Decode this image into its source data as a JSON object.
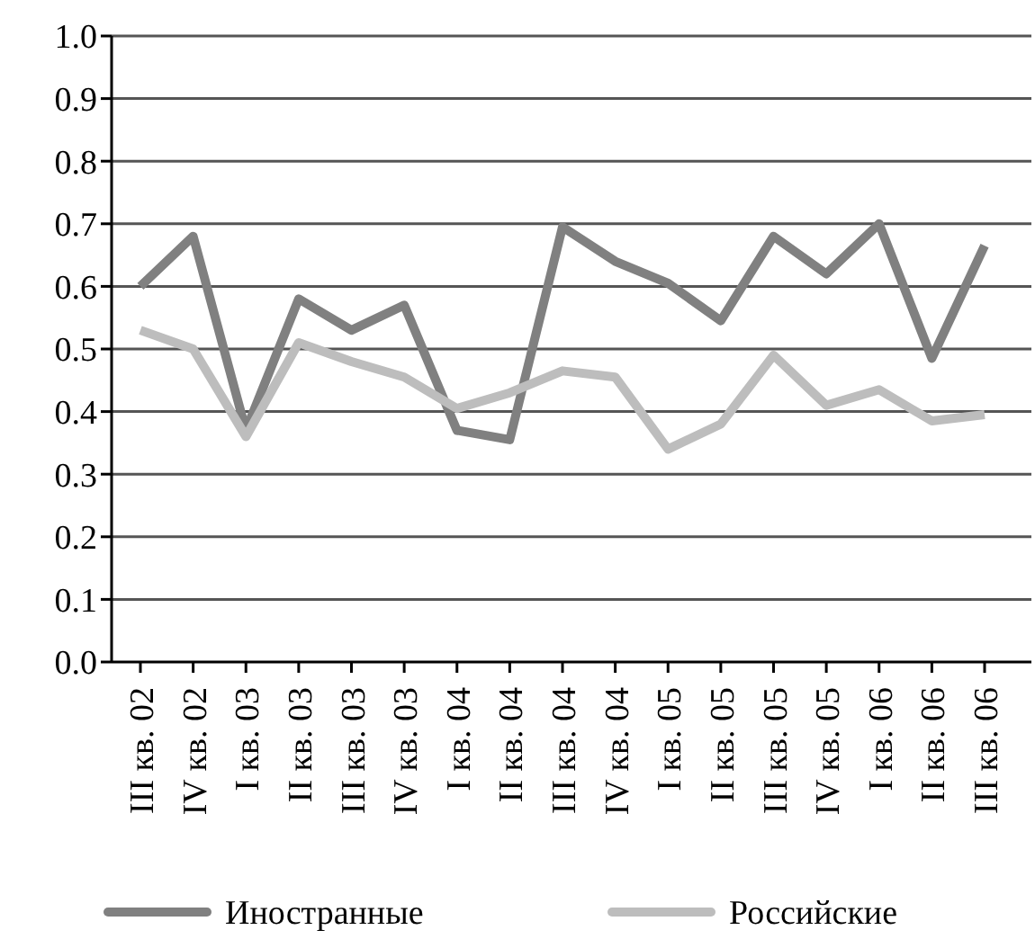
{
  "chart_data": {
    "type": "line",
    "categories": [
      "III кв. 02",
      "IV кв. 02",
      "I кв. 03",
      "II кв. 03",
      "III кв. 03",
      "IV кв. 03",
      "I кв. 04",
      "II кв. 04",
      "III кв. 04",
      "IV кв. 04",
      "I кв. 05",
      "II кв. 05",
      "III кв. 05",
      "IV кв. 05",
      "I кв. 06",
      "II кв. 06",
      "III кв. 06"
    ],
    "series": [
      {
        "name": "Иностранные",
        "color": "#808080",
        "values": [
          0.6,
          0.68,
          0.37,
          0.58,
          0.53,
          0.57,
          0.37,
          0.355,
          0.695,
          0.64,
          0.605,
          0.545,
          0.68,
          0.62,
          0.7,
          0.485,
          0.665
        ]
      },
      {
        "name": "Российские",
        "color": "#bdbdbd",
        "values": [
          0.53,
          0.5,
          0.36,
          0.51,
          0.48,
          0.455,
          0.405,
          0.43,
          0.465,
          0.455,
          0.34,
          0.38,
          0.49,
          0.41,
          0.435,
          0.385,
          0.395
        ]
      }
    ],
    "ylim": [
      0,
      1
    ],
    "yticks": [
      {
        "value": 0,
        "label": "0.0"
      },
      {
        "value": 0.1,
        "label": "0.1"
      },
      {
        "value": 0.2,
        "label": "0.2"
      },
      {
        "value": 0.3,
        "label": "0.3"
      },
      {
        "value": 0.4,
        "label": "0.4"
      },
      {
        "value": 0.5,
        "label": "0.5"
      },
      {
        "value": 0.6,
        "label": "0.6"
      },
      {
        "value": 0.7,
        "label": "0.7"
      },
      {
        "value": 0.8,
        "label": "0.8"
      },
      {
        "value": 0.9,
        "label": "0.9"
      },
      {
        "value": 1,
        "label": "1.0"
      }
    ],
    "grid": "y",
    "legend": "bottom",
    "line_style": "solid"
  }
}
